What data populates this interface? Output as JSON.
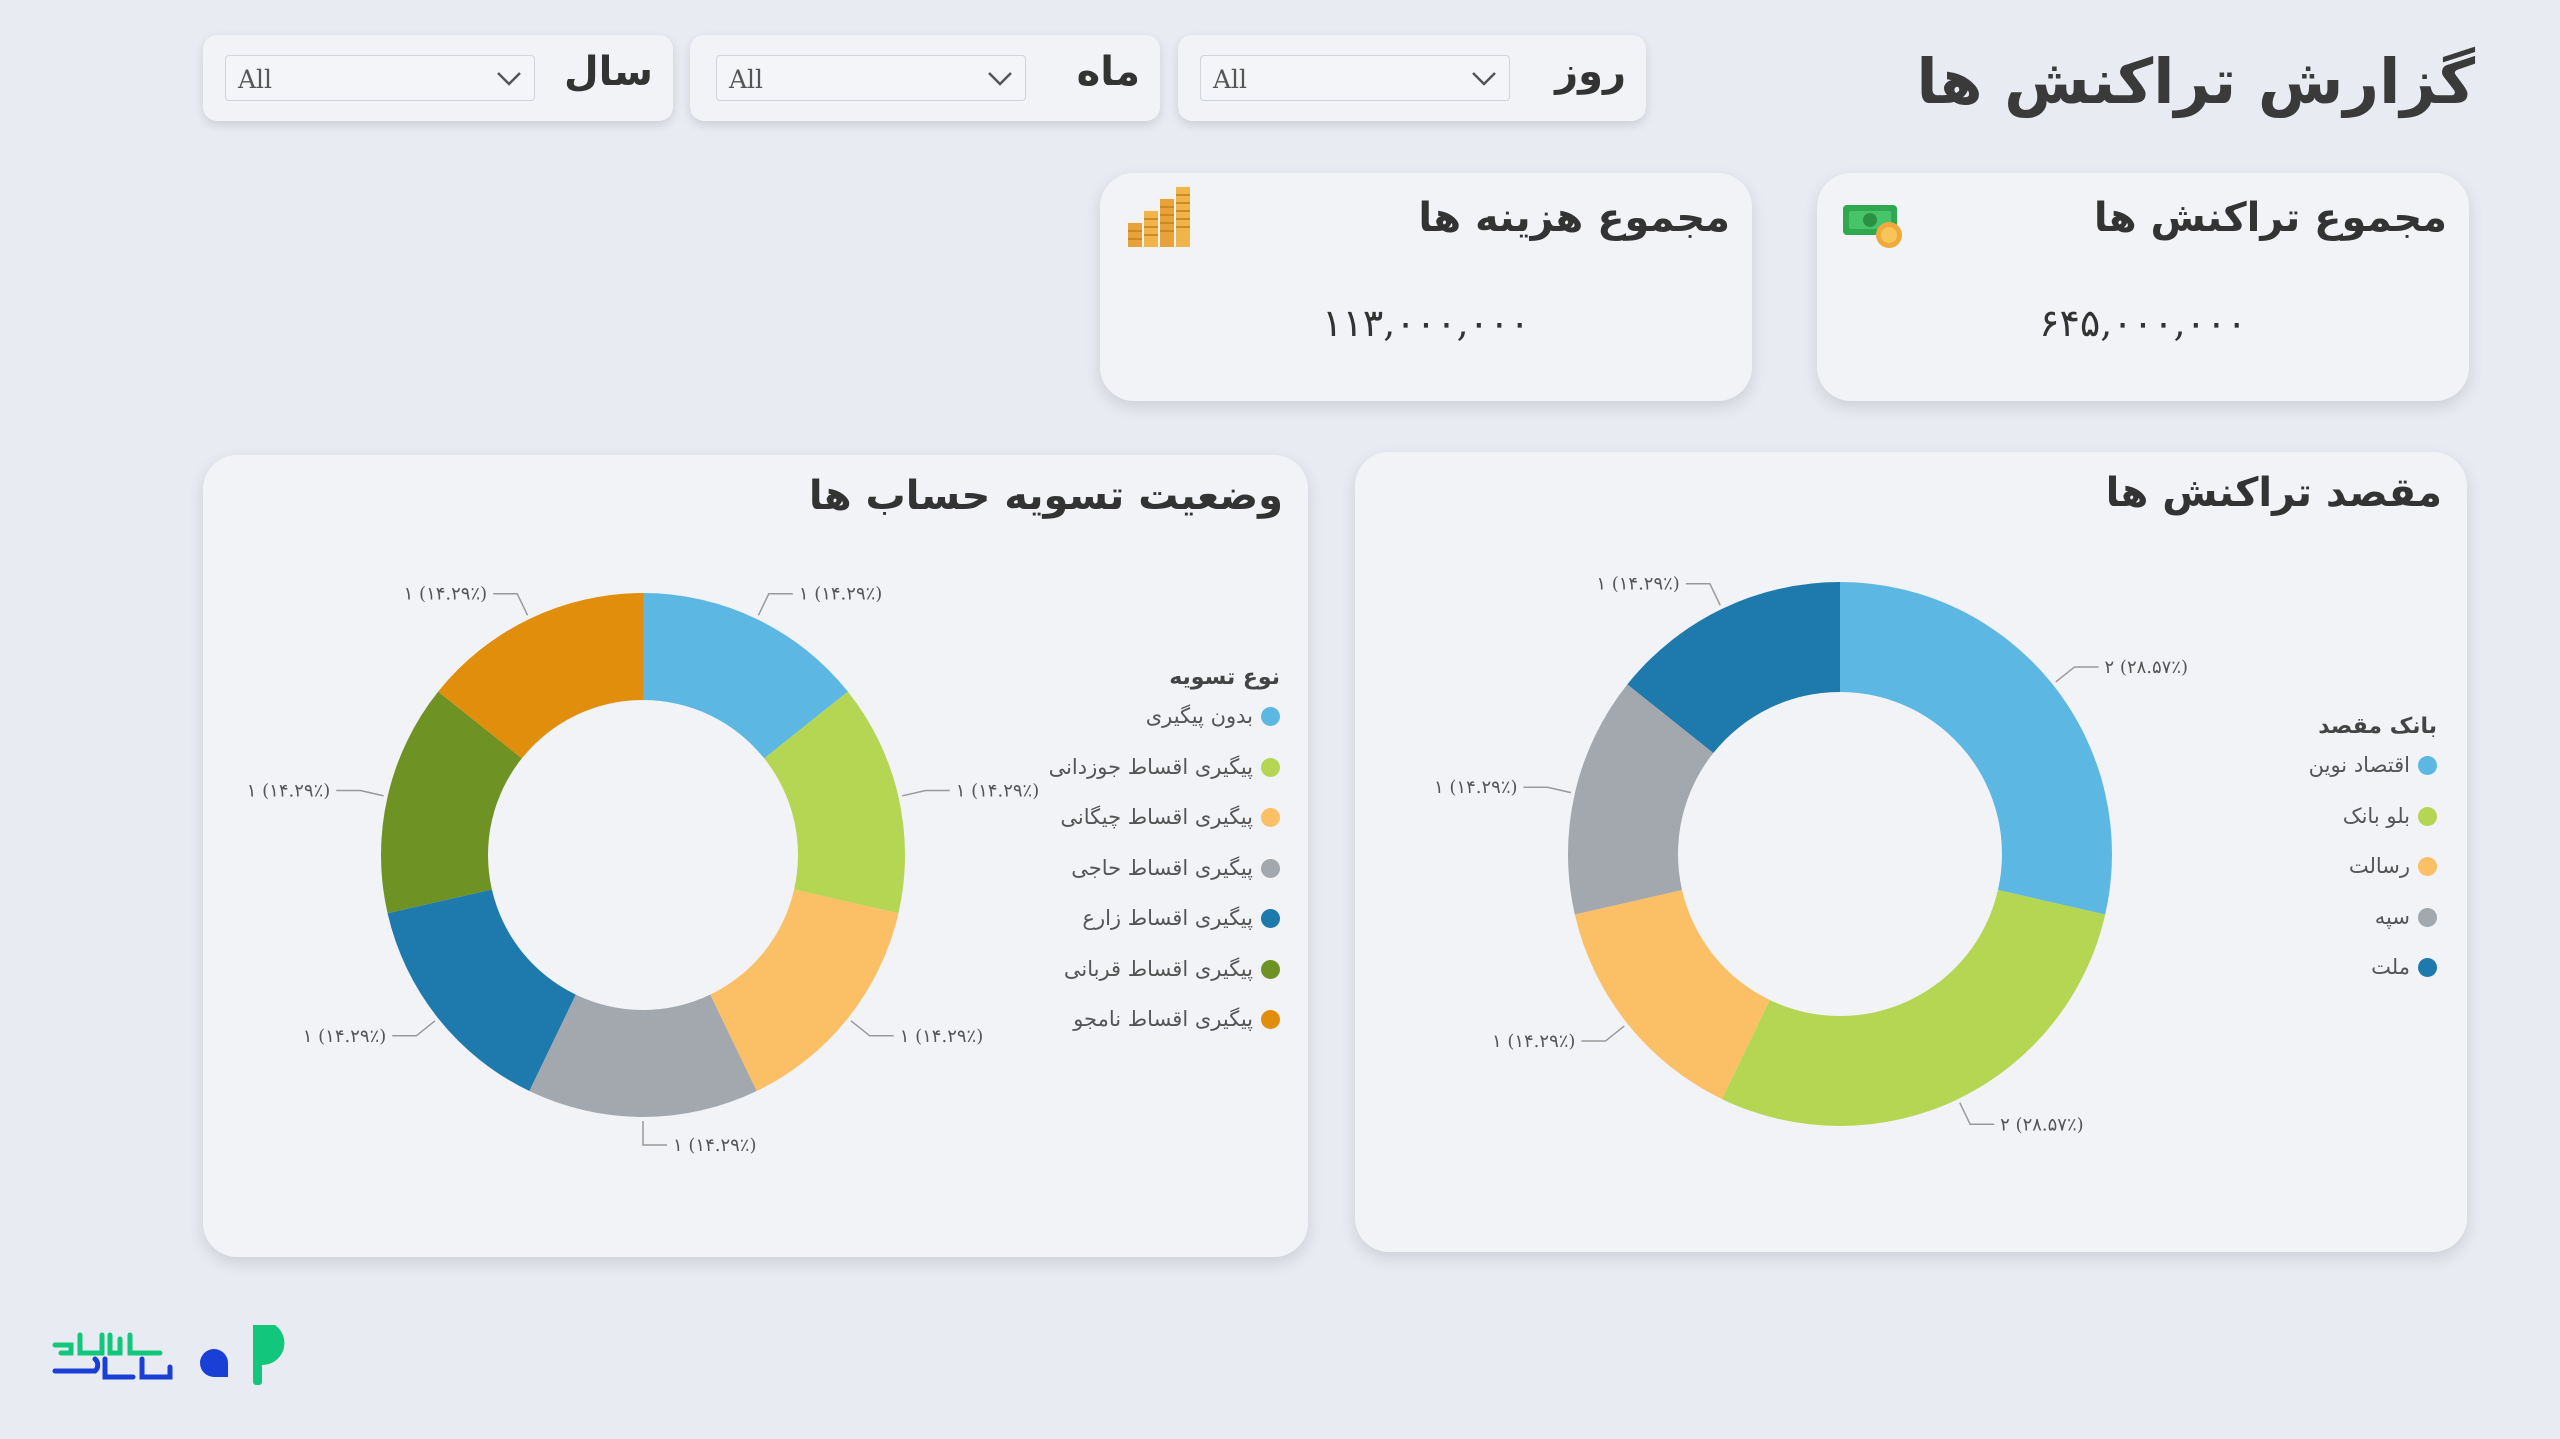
{
  "header": {
    "title": "گزارش تراکنش ها"
  },
  "filters": [
    {
      "label": "روز",
      "value": "All"
    },
    {
      "label": "ماه",
      "value": "All"
    },
    {
      "label": "سال",
      "value": "All"
    }
  ],
  "kpis": {
    "transactions": {
      "title": "مجموع تراکنش ها",
      "value": "۶۴۵,۰۰۰,۰۰۰",
      "icon": "money-coins-icon"
    },
    "expenses": {
      "title": "مجموع هزینه ها",
      "value": "۱۱۳,۰۰۰,۰۰۰",
      "icon": "coin-stacks-icon"
    }
  },
  "chart_data": [
    {
      "type": "pie",
      "variant": "donut",
      "title": "مقصد تراکنش ها",
      "legend_title": "بانک مقصد",
      "legend_position": "right",
      "categories": [
        "اقتصاد نوین",
        "بلو بانک",
        "رسالت",
        "سپه",
        "ملت"
      ],
      "values": [
        2,
        2,
        1,
        1,
        1
      ],
      "labels": [
        "۲ (۲۸.۵۷٪)",
        "۲ (۲۸.۵۷٪)",
        "۱ (۱۴.۲۹٪)",
        "۱ (۱۴.۲۹٪)",
        "۱ (۱۴.۲۹٪)"
      ],
      "colors": [
        "#5cb7e2",
        "#b5d652",
        "#fbc066",
        "#a2a8ae",
        "#1e79ac"
      ]
    },
    {
      "type": "pie",
      "variant": "donut",
      "title": "وضعیت تسویه حساب ها",
      "legend_title": "نوع تسویه",
      "legend_position": "right",
      "categories": [
        "بدون پیگیری",
        "پیگیری اقساط جوزدانی",
        "پیگیری اقساط چیگانی",
        "پیگیری اقساط حاجی",
        "پیگیری اقساط زارع",
        "پیگیری اقساط قربانی",
        "پیگیری اقساط نامجو"
      ],
      "values": [
        1,
        1,
        1,
        1,
        1,
        1,
        1
      ],
      "labels": [
        "۱ (۱۴.۲۹٪)",
        "۱ (۱۴.۲۹٪)",
        "۱ (۱۴.۲۹٪)",
        "۱ (۱۴.۲۹٪)",
        "۱ (۱۴.۲۹٪)",
        "۱ (۱۴.۲۹٪)",
        "۱ (۱۴.۲۹٪)"
      ],
      "colors": [
        "#5cb7e2",
        "#b5d652",
        "#fbc066",
        "#a2a8ae",
        "#1e79ac",
        "#6f9224",
        "#e08e0b"
      ]
    }
  ],
  "brand": {
    "logo": "salam-jekah-logo",
    "text": "سلام جکاه",
    "colors": [
      "#12c67c",
      "#1a3fd6"
    ]
  }
}
